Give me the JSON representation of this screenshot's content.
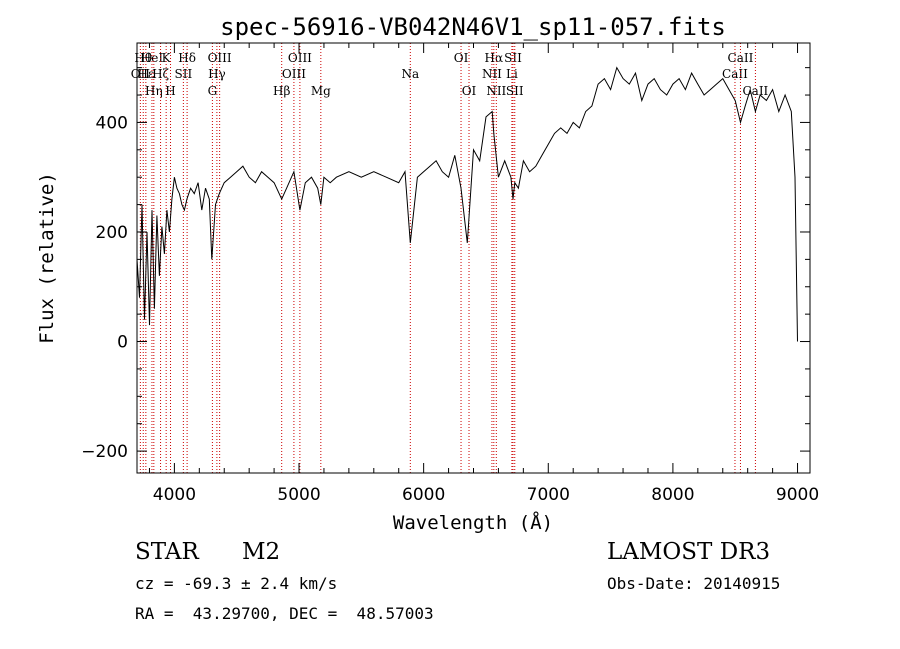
{
  "chart_data": {
    "type": "line",
    "title": "spec-56916-VB042N46V1_sp11-057.fits",
    "xlabel": "Wavelength (Å)",
    "ylabel": "Flux (relative)",
    "xlim": [
      3700,
      9100
    ],
    "ylim": [
      -240,
      545
    ],
    "x_ticks": [
      4000,
      5000,
      6000,
      7000,
      8000,
      9000
    ],
    "y_ticks": [
      -200,
      0,
      200,
      400
    ],
    "grid": false,
    "line_color": "#000000",
    "marker_color": "#cc0000",
    "series": [
      {
        "name": "flux",
        "x": [
          3700,
          3720,
          3740,
          3760,
          3780,
          3800,
          3820,
          3840,
          3860,
          3880,
          3900,
          3920,
          3940,
          3960,
          3980,
          4000,
          4020,
          4040,
          4060,
          4080,
          4100,
          4130,
          4160,
          4190,
          4220,
          4250,
          4280,
          4300,
          4330,
          4360,
          4400,
          4450,
          4500,
          4550,
          4600,
          4650,
          4700,
          4750,
          4800,
          4861,
          4900,
          4959,
          5007,
          5050,
          5100,
          5150,
          5175,
          5200,
          5250,
          5300,
          5400,
          5500,
          5600,
          5700,
          5800,
          5850,
          5893,
          5950,
          6000,
          6050,
          6100,
          6150,
          6200,
          6250,
          6300,
          6350,
          6400,
          6450,
          6500,
          6550,
          6563,
          6600,
          6650,
          6700,
          6717,
          6731,
          6760,
          6800,
          6850,
          6900,
          6950,
          7000,
          7050,
          7100,
          7150,
          7200,
          7250,
          7300,
          7350,
          7400,
          7450,
          7500,
          7550,
          7600,
          7650,
          7700,
          7750,
          7800,
          7850,
          7900,
          7950,
          8000,
          8050,
          8100,
          8150,
          8200,
          8250,
          8300,
          8350,
          8400,
          8450,
          8500,
          8542,
          8580,
          8620,
          8662,
          8700,
          8750,
          8800,
          8850,
          8900,
          8950,
          8980,
          9000
        ],
        "y": [
          150,
          80,
          250,
          40,
          200,
          30,
          240,
          60,
          230,
          120,
          210,
          160,
          240,
          200,
          260,
          300,
          280,
          270,
          250,
          240,
          260,
          280,
          270,
          290,
          240,
          280,
          260,
          150,
          250,
          270,
          290,
          300,
          310,
          320,
          300,
          290,
          310,
          300,
          290,
          260,
          280,
          310,
          240,
          290,
          300,
          280,
          250,
          300,
          290,
          300,
          310,
          300,
          310,
          300,
          290,
          310,
          180,
          300,
          310,
          320,
          330,
          310,
          300,
          340,
          280,
          180,
          350,
          330,
          410,
          420,
          380,
          300,
          330,
          300,
          260,
          290,
          280,
          330,
          310,
          320,
          340,
          360,
          380,
          390,
          380,
          400,
          390,
          420,
          430,
          470,
          480,
          460,
          500,
          480,
          470,
          490,
          440,
          470,
          480,
          460,
          450,
          470,
          480,
          460,
          490,
          470,
          450,
          460,
          470,
          480,
          460,
          440,
          400,
          430,
          460,
          420,
          450,
          440,
          460,
          420,
          450,
          420,
          300,
          0
        ]
      }
    ],
    "line_markers": [
      {
        "wl": 3727,
        "label": "OII",
        "row": 2
      },
      {
        "wl": 3750,
        "label": "Hθ",
        "row": 1
      },
      {
        "wl": 3771,
        "label": "Hε",
        "row": 2
      },
      {
        "wl": 3820,
        "label": "HeI",
        "row": 1
      },
      {
        "wl": 3835,
        "label": "Hη",
        "row": 3
      },
      {
        "wl": 3889,
        "label": "Hζ",
        "row": 2
      },
      {
        "wl": 3934,
        "label": "K",
        "row": 1
      },
      {
        "wl": 3969,
        "label": "H",
        "row": 3
      },
      {
        "wl": 4072,
        "label": "SII",
        "row": 2
      },
      {
        "wl": 4102,
        "label": "Hδ",
        "row": 1
      },
      {
        "wl": 4305,
        "label": "G",
        "row": 3
      },
      {
        "wl": 4341,
        "label": "Hγ",
        "row": 2
      },
      {
        "wl": 4363,
        "label": "OIII",
        "row": 1
      },
      {
        "wl": 4861,
        "label": "Hβ",
        "row": 3
      },
      {
        "wl": 4959,
        "label": "OIII",
        "row": 2
      },
      {
        "wl": 5007,
        "label": "OIII",
        "row": 1
      },
      {
        "wl": 5175,
        "label": "Mg",
        "row": 3
      },
      {
        "wl": 5893,
        "label": "Na",
        "row": 2
      },
      {
        "wl": 6300,
        "label": "OI",
        "row": 1
      },
      {
        "wl": 6364,
        "label": "OI",
        "row": 3
      },
      {
        "wl": 6548,
        "label": "NII",
        "row": 2
      },
      {
        "wl": 6563,
        "label": "Hα",
        "row": 1
      },
      {
        "wl": 6583,
        "label": "NII",
        "row": 3
      },
      {
        "wl": 6708,
        "label": "Li",
        "row": 2
      },
      {
        "wl": 6717,
        "label": "SII",
        "row": 1
      },
      {
        "wl": 6731,
        "label": "SII",
        "row": 3
      },
      {
        "wl": 8498,
        "label": "CaII",
        "row": 2
      },
      {
        "wl": 8542,
        "label": "CaII",
        "row": 1
      },
      {
        "wl": 8662,
        "label": "CaII",
        "row": 3
      }
    ]
  },
  "info": {
    "object_class": "STAR",
    "subclass": "M2",
    "survey": "LAMOST DR3",
    "redshift_text": "cz = -69.3 ± 2.4 km/s",
    "obs_date_text": "Obs-Date: 20140915",
    "coords_text": "RA =  43.29700, DEC =  48.57003"
  }
}
